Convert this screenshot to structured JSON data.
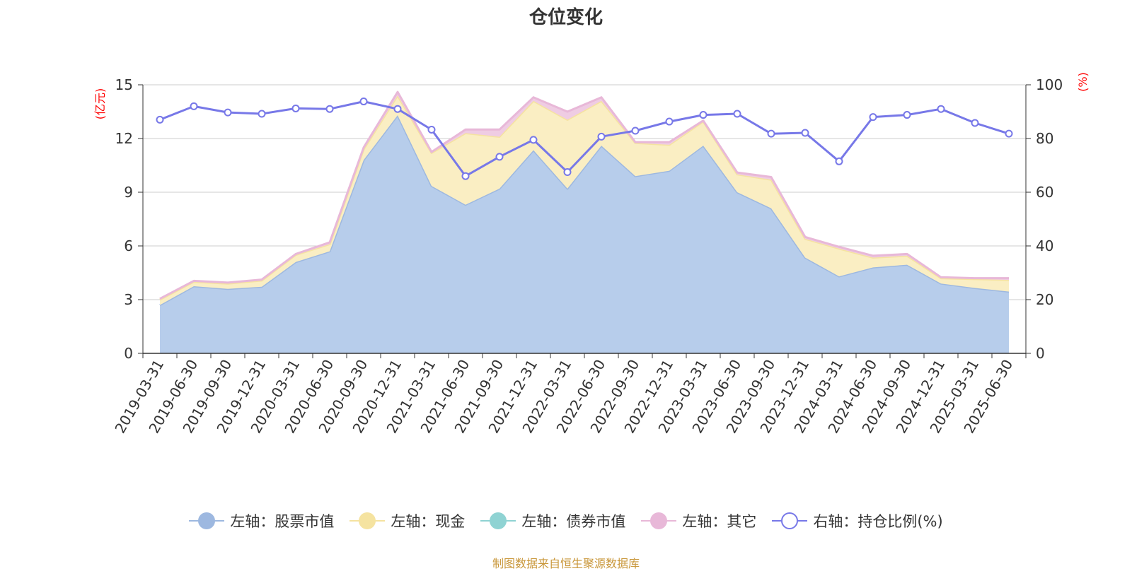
{
  "chart_data": {
    "type": "area",
    "title": "仓位变化",
    "source": "制图数据来自恒生聚源数据库",
    "left_axis_unit": "(亿元)",
    "right_axis_unit": "(%)",
    "ylim_left": [
      0,
      15
    ],
    "yticks_left": [
      0,
      3,
      6,
      9,
      12,
      15
    ],
    "ylim_right": [
      0,
      100
    ],
    "yticks_right": [
      0,
      20,
      40,
      60,
      80,
      100
    ],
    "grid": true,
    "legend_position": "bottom",
    "categories": [
      "2019-03-31",
      "2019-06-30",
      "2019-09-30",
      "2019-12-31",
      "2020-03-31",
      "2020-06-30",
      "2020-09-30",
      "2020-12-31",
      "2021-03-31",
      "2021-06-30",
      "2021-09-30",
      "2021-12-31",
      "2022-03-31",
      "2022-06-30",
      "2022-09-30",
      "2022-12-31",
      "2023-03-31",
      "2023-06-30",
      "2023-09-30",
      "2023-12-31",
      "2024-03-31",
      "2024-06-30",
      "2024-09-30",
      "2024-12-31",
      "2025-03-31",
      "2025-06-30"
    ],
    "series": [
      {
        "name": "左轴：股票市值",
        "axis": "left",
        "stack": true,
        "color": "#9db8e0",
        "fill": "#b7cdeb",
        "values": [
          2.7,
          3.75,
          3.6,
          3.72,
          5.1,
          5.7,
          10.8,
          13.3,
          9.35,
          8.3,
          9.2,
          11.35,
          9.2,
          11.6,
          9.9,
          10.2,
          11.6,
          9.0,
          8.1,
          5.35,
          4.3,
          4.8,
          4.95,
          3.9,
          3.65,
          3.45
        ]
      },
      {
        "name": "左轴：现金",
        "axis": "left",
        "stack": true,
        "color": "#f5e3a0",
        "fill": "#faeec3",
        "values": [
          0.3,
          0.25,
          0.3,
          0.35,
          0.4,
          0.4,
          0.6,
          1.1,
          1.85,
          4.0,
          2.9,
          2.75,
          3.85,
          2.5,
          1.85,
          1.45,
          1.35,
          1.0,
          1.6,
          1.05,
          1.55,
          0.55,
          0.5,
          0.3,
          0.5,
          0.65
        ]
      },
      {
        "name": "左轴：债券市值",
        "axis": "left",
        "stack": true,
        "color": "#8fd3d3",
        "fill": "#a8e0e0",
        "values": [
          0,
          0,
          0,
          0,
          0,
          0,
          0,
          0,
          0,
          0,
          0,
          0,
          0,
          0,
          0,
          0,
          0,
          0,
          0,
          0,
          0,
          0,
          0,
          0,
          0,
          0
        ]
      },
      {
        "name": "左轴：其它",
        "axis": "left",
        "stack": true,
        "color": "#e8b8d8",
        "fill": "#efcce3",
        "values": [
          0.05,
          0.05,
          0.05,
          0.05,
          0.05,
          0.1,
          0.1,
          0.2,
          0.05,
          0.2,
          0.4,
          0.2,
          0.45,
          0.2,
          0.05,
          0.15,
          0.05,
          0.1,
          0.15,
          0.1,
          0.1,
          0.1,
          0.1,
          0.05,
          0.05,
          0.1
        ]
      },
      {
        "name": "右轴：持仓比例(%)",
        "axis": "right",
        "color": "#7778e8",
        "values": [
          87,
          92,
          89.7,
          89.2,
          91.2,
          91,
          93.8,
          91,
          83.3,
          66,
          73.2,
          79.5,
          67.5,
          80.7,
          82.9,
          86.3,
          88.8,
          89.2,
          81.8,
          82.1,
          71.5,
          88,
          88.8,
          91,
          85.8,
          81.8
        ]
      }
    ]
  }
}
